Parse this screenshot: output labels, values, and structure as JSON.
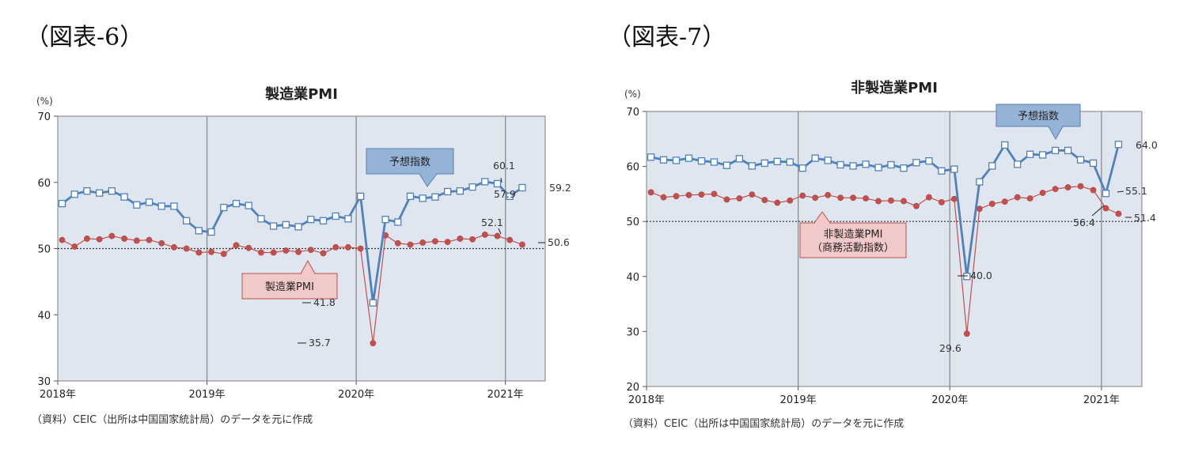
{
  "figures": [
    {
      "label": "（図表-6）",
      "source": "（資料）CEIC（出所は中国国家統計局）のデータを元に作成"
    },
    {
      "label": "（図表-7）",
      "source": "（資料）CEIC（出所は中国国家統計局）のデータを元に作成"
    }
  ],
  "colors": {
    "plot_bg": "#dfe6f0",
    "blue": "#4f81bd",
    "red": "#c0504d",
    "grid": "#8c8c8c"
  },
  "chart_data": [
    {
      "type": "line",
      "title": "製造業PMI",
      "unit": "(%)",
      "ylim": [
        30,
        70
      ],
      "yticks": [
        30,
        40,
        50,
        60,
        70
      ],
      "reference_line": 50,
      "x_start": "2018-01",
      "x_labels": [
        "2018年",
        "2019年",
        "2020年",
        "2021年"
      ],
      "series": [
        {
          "name": "予想指数",
          "values": [
            56.8,
            58.2,
            58.7,
            58.4,
            58.7,
            57.8,
            56.6,
            57.0,
            56.4,
            56.4,
            54.2,
            52.7,
            52.5,
            56.2,
            56.8,
            56.5,
            54.5,
            53.4,
            53.6,
            53.3,
            54.4,
            54.2,
            54.9,
            54.5,
            57.9,
            41.8,
            54.4,
            54.0,
            57.9,
            57.6,
            57.8,
            58.6,
            58.7,
            59.3,
            60.1,
            59.8,
            57.9,
            59.2
          ]
        },
        {
          "name": "製造業PMI",
          "values": [
            51.3,
            50.3,
            51.5,
            51.4,
            51.9,
            51.5,
            51.2,
            51.3,
            50.8,
            50.2,
            50.0,
            49.4,
            49.5,
            49.2,
            50.5,
            50.1,
            49.4,
            49.4,
            49.7,
            49.5,
            49.8,
            49.3,
            50.2,
            50.2,
            50.0,
            35.7,
            52.0,
            50.8,
            50.6,
            50.9,
            51.1,
            51.0,
            51.5,
            51.4,
            52.1,
            51.9,
            51.3,
            50.6
          ]
        }
      ],
      "annotations": [
        "60.1",
        "57.9",
        "59.2",
        "52.1",
        "50.6",
        "41.8",
        "35.7"
      ],
      "callouts": [
        "予想指数",
        "製造業PMI"
      ]
    },
    {
      "type": "line",
      "title": "非製造業PMI",
      "unit": "(%)",
      "ylim": [
        20,
        70
      ],
      "yticks": [
        20,
        30,
        40,
        50,
        60,
        70
      ],
      "reference_line": 50,
      "x_start": "2018-01",
      "x_labels": [
        "2018年",
        "2019年",
        "2020年",
        "2021年"
      ],
      "series": [
        {
          "name": "予想指数",
          "values": [
            61.7,
            61.2,
            61.1,
            61.5,
            61.0,
            60.8,
            60.2,
            61.4,
            60.1,
            60.6,
            60.9,
            60.8,
            59.7,
            61.5,
            61.1,
            60.3,
            60.1,
            60.4,
            59.8,
            60.3,
            59.7,
            60.7,
            61.0,
            59.2,
            59.5,
            40.0,
            57.2,
            60.1,
            63.9,
            60.4,
            62.2,
            62.1,
            62.9,
            62.9,
            61.2,
            60.6,
            55.1,
            64.0
          ]
        },
        {
          "name": "非製造業PMI\n（商務活動指数）",
          "values": [
            55.3,
            54.4,
            54.6,
            54.8,
            54.9,
            55.0,
            54.0,
            54.2,
            54.9,
            53.9,
            53.4,
            53.8,
            54.7,
            54.3,
            54.8,
            54.3,
            54.3,
            54.2,
            53.7,
            53.8,
            53.7,
            52.8,
            54.4,
            53.5,
            54.1,
            29.6,
            52.3,
            53.2,
            53.6,
            54.4,
            54.2,
            55.2,
            55.9,
            56.2,
            56.4,
            55.7,
            52.4,
            51.4
          ]
        }
      ],
      "annotations": [
        "64.0",
        "55.1",
        "51.4",
        "56.4",
        "40.0",
        "29.6"
      ],
      "callouts": [
        "予想指数",
        "非製造業PMI",
        "（商務活動指数）"
      ]
    }
  ]
}
